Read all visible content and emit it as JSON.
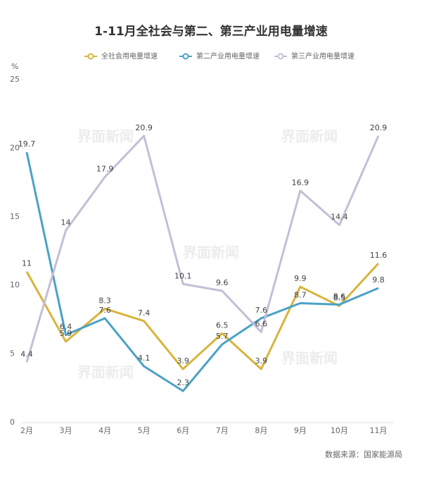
{
  "chart_data": {
    "type": "line",
    "title": "1-11月全社会与第二、第三产业用电量增速",
    "y_label": "%",
    "categories": [
      "2月",
      "3月",
      "4月",
      "5月",
      "6月",
      "7月",
      "8月",
      "9月",
      "10月",
      "11月"
    ],
    "series": [
      {
        "name": "全社会用电量增速",
        "color": "#d8b43c",
        "values": [
          11,
          5.9,
          8.3,
          7.4,
          3.9,
          6.5,
          3.9,
          9.9,
          8.5,
          11.6
        ]
      },
      {
        "name": "第二产业用电量增速",
        "color": "#4aa2c6",
        "values": [
          19.7,
          6.4,
          7.6,
          4.1,
          2.3,
          5.7,
          7.6,
          8.7,
          8.6,
          9.8
        ]
      },
      {
        "name": "第三产业用电量增速",
        "color": "#c4bed6",
        "values": [
          4.4,
          14,
          17.9,
          20.9,
          10.1,
          9.6,
          6.6,
          16.9,
          14.4,
          20.9
        ]
      }
    ],
    "ylim": [
      0,
      25
    ],
    "yticks": [
      0,
      5,
      10,
      15,
      20,
      25
    ],
    "source": "数据来源：国家能源局",
    "watermark": "界面新闻"
  }
}
